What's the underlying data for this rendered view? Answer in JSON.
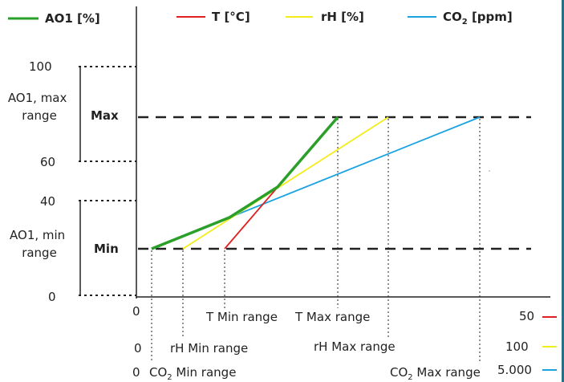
{
  "legend": {
    "ao1": {
      "label": "AO1 [%]",
      "color": "#2aa02a"
    },
    "t": {
      "label": "T [°C]",
      "color": "#e02020"
    },
    "rh": {
      "label": "rH [%]",
      "color": "#f2ec1a"
    },
    "co2": {
      "label_pre": "CO",
      "label_sub": "2",
      "label_post": " [ppm]",
      "color": "#1aa3e0"
    }
  },
  "y_axis": {
    "tick_100": "100",
    "tick_60": "60",
    "tick_40": "40",
    "tick_0": "0",
    "max_range_label": [
      "AO1, max",
      "range"
    ],
    "min_range_label": [
      "AO1, min",
      "range"
    ],
    "max_label": "Max",
    "min_label": "Min"
  },
  "x_axis": {
    "t_row": {
      "start": "0",
      "min_label": "T Min range",
      "max_label": "T Max range",
      "end": "50"
    },
    "rh_row": {
      "start": "0",
      "min_label": "rH Min range",
      "max_label": "rH Max range",
      "end": "100"
    },
    "co2_row": {
      "start": "0",
      "min_pre": "CO",
      "min_sub": "2",
      "min_post": " Min range",
      "max_pre": "CO",
      "max_sub": "2",
      "max_post": " Max range",
      "end": "5.000"
    }
  }
}
